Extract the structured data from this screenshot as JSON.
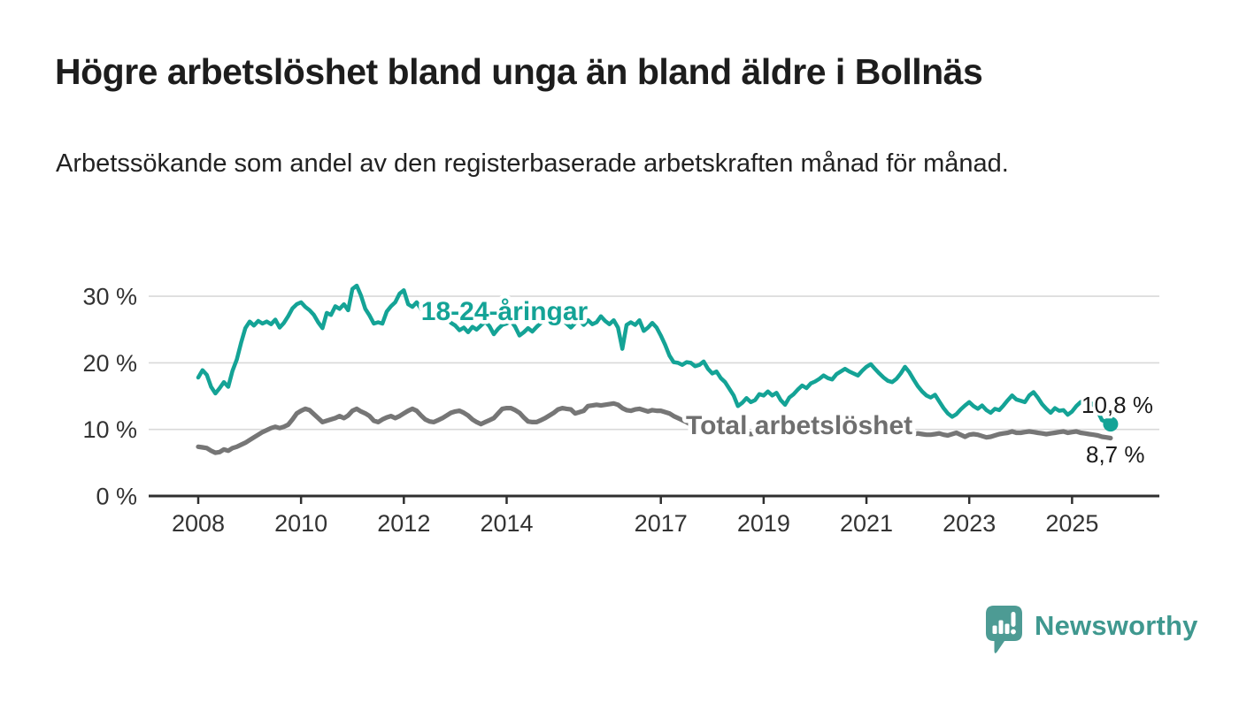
{
  "header": {
    "title": "Högre arbetslöshet bland unga än bland äldre i Bollnäs",
    "subtitle": "Arbetssökande som andel av den registerbaserade arbetskraften månad för månad."
  },
  "chart_data": {
    "type": "line",
    "unit": "%",
    "x_start": "2008-01",
    "x_end": "2025-10",
    "frequency": "monthly",
    "ylim": [
      0,
      33
    ],
    "grid": "horizontal",
    "y_ticks": [
      {
        "value": 0,
        "label": "0 %"
      },
      {
        "value": 10,
        "label": "10 %"
      },
      {
        "value": 20,
        "label": "20 %"
      },
      {
        "value": 30,
        "label": "30 %"
      }
    ],
    "x_ticks": [
      {
        "year": 2008,
        "label": "2008"
      },
      {
        "year": 2010,
        "label": "2010"
      },
      {
        "year": 2012,
        "label": "2012"
      },
      {
        "year": 2014,
        "label": "2014"
      },
      {
        "year": 2017,
        "label": "2017"
      },
      {
        "year": 2019,
        "label": "2019"
      },
      {
        "year": 2021,
        "label": "2021"
      },
      {
        "year": 2023,
        "label": "2023"
      },
      {
        "year": 2025,
        "label": "2025"
      }
    ],
    "series": [
      {
        "name": "18-24-åringar",
        "color": "#14a396",
        "end_label": "10,8 %",
        "end_value": 10.8,
        "end_marker": true,
        "values": [
          17.8,
          18.9,
          18.2,
          16.4,
          15.4,
          16.2,
          17.1,
          16.4,
          18.8,
          20.5,
          23.0,
          25.2,
          26.2,
          25.6,
          26.3,
          25.9,
          26.2,
          25.8,
          26.5,
          25.3,
          26.0,
          27.0,
          28.2,
          28.8,
          29.1,
          28.4,
          27.9,
          27.2,
          26.1,
          25.2,
          27.5,
          27.2,
          28.5,
          28.1,
          28.8,
          27.9,
          31.1,
          31.6,
          30.1,
          28.1,
          27.1,
          25.9,
          26.1,
          25.9,
          27.7,
          28.5,
          29.1,
          30.4,
          30.9,
          28.8,
          28.4,
          29.1,
          28.1,
          28.5,
          27.5,
          27.9,
          27.0,
          26.2,
          26.8,
          26.0,
          25.6,
          24.9,
          25.3,
          24.6,
          25.4,
          25.0,
          25.6,
          26.2,
          25.5,
          24.3,
          25.1,
          25.7,
          25.9,
          26.3,
          25.4,
          24.1,
          24.6,
          25.2,
          24.7,
          25.4,
          26.0,
          26.5,
          27.0,
          26.6,
          27.2,
          26.5,
          25.9,
          25.3,
          26.0,
          26.4,
          25.7,
          26.4,
          25.8,
          26.1,
          27.0,
          26.3,
          25.8,
          26.4,
          25.3,
          22.1,
          25.7,
          26.1,
          25.7,
          26.4,
          24.8,
          25.3,
          26.0,
          25.3,
          24.1,
          22.7,
          21.1,
          20.1,
          20.0,
          19.7,
          20.1,
          20.0,
          19.5,
          19.7,
          20.2,
          19.1,
          18.4,
          18.7,
          17.7,
          17.1,
          16.1,
          15.1,
          13.5,
          14.0,
          14.7,
          14.1,
          14.4,
          15.3,
          15.1,
          15.7,
          15.1,
          15.5,
          14.4,
          13.7,
          14.8,
          15.3,
          16.0,
          16.6,
          16.2,
          16.9,
          17.2,
          17.6,
          18.1,
          17.7,
          17.5,
          18.3,
          18.7,
          19.1,
          18.7,
          18.4,
          18.1,
          18.8,
          19.4,
          19.8,
          19.1,
          18.4,
          17.8,
          17.3,
          17.1,
          17.6,
          18.4,
          19.4,
          18.6,
          17.5,
          16.5,
          15.7,
          15.1,
          14.8,
          15.2,
          14.2,
          13.2,
          12.4,
          11.9,
          12.3,
          13.0,
          13.6,
          14.1,
          13.5,
          13.1,
          13.6,
          12.9,
          12.5,
          13.1,
          12.9,
          13.6,
          14.4,
          15.1,
          14.5,
          14.3,
          14.1,
          15.1,
          15.6,
          14.8,
          13.8,
          13.1,
          12.5,
          13.2,
          12.8,
          12.9,
          12.2,
          12.7,
          13.5,
          14.1,
          14.3,
          14.1,
          13.7,
          12.7,
          11.4,
          11.1,
          10.8
        ]
      },
      {
        "name": "Total arbetslöshet",
        "color": "#767676",
        "end_label": "8,7 %",
        "end_value": 8.7,
        "end_marker": false,
        "values": [
          7.4,
          7.3,
          7.2,
          6.8,
          6.5,
          6.6,
          7.0,
          6.8,
          7.2,
          7.4,
          7.7,
          8.0,
          8.4,
          8.8,
          9.2,
          9.6,
          9.9,
          10.2,
          10.4,
          10.2,
          10.4,
          10.7,
          11.5,
          12.4,
          12.8,
          13.1,
          12.9,
          12.3,
          11.7,
          11.1,
          11.3,
          11.5,
          11.7,
          12.0,
          11.7,
          12.1,
          12.8,
          13.1,
          12.7,
          12.4,
          12.0,
          11.3,
          11.1,
          11.5,
          11.8,
          12.0,
          11.7,
          12.0,
          12.4,
          12.8,
          13.1,
          12.8,
          12.1,
          11.5,
          11.2,
          11.1,
          11.4,
          11.7,
          12.1,
          12.5,
          12.7,
          12.8,
          12.5,
          12.1,
          11.5,
          11.1,
          10.8,
          11.1,
          11.4,
          11.7,
          12.4,
          13.1,
          13.2,
          13.2,
          12.9,
          12.5,
          11.8,
          11.2,
          11.1,
          11.1,
          11.4,
          11.7,
          12.1,
          12.5,
          13.0,
          13.2,
          13.1,
          13.0,
          12.4,
          12.6,
          12.8,
          13.5,
          13.6,
          13.7,
          13.6,
          13.7,
          13.8,
          13.9,
          13.7,
          13.2,
          12.9,
          12.8,
          13.0,
          13.1,
          12.9,
          12.7,
          12.9,
          12.8,
          12.8,
          12.6,
          12.4,
          12.0,
          11.7,
          11.4,
          11.1,
          10.7,
          10.4,
          10.3,
          10.2,
          10.1,
          10.0,
          9.9,
          9.8,
          9.6,
          9.4,
          9.3,
          9.2,
          9.3,
          9.4,
          9.3,
          9.4,
          9.5,
          9.5,
          9.6,
          9.5,
          9.4,
          9.3,
          9.2,
          9.4,
          9.6,
          9.8,
          9.9,
          9.8,
          10.0,
          10.1,
          10.2,
          10.5,
          10.8,
          10.9,
          11.0,
          11.1,
          11.0,
          10.8,
          10.6,
          10.4,
          10.5,
          10.6,
          10.5,
          10.4,
          10.2,
          10.0,
          9.8,
          9.7,
          9.6,
          9.5,
          9.4,
          9.3,
          9.3,
          9.4,
          9.3,
          9.2,
          9.2,
          9.3,
          9.4,
          9.2,
          9.1,
          9.3,
          9.5,
          9.2,
          8.9,
          9.2,
          9.3,
          9.2,
          9.0,
          8.8,
          8.9,
          9.1,
          9.3,
          9.4,
          9.5,
          9.7,
          9.5,
          9.5,
          9.6,
          9.7,
          9.6,
          9.5,
          9.4,
          9.3,
          9.4,
          9.5,
          9.6,
          9.7,
          9.5,
          9.6,
          9.7,
          9.5,
          9.4,
          9.3,
          9.2,
          9.1,
          8.9,
          8.8,
          8.7
        ]
      }
    ]
  },
  "branding": {
    "logo_text": "Newsworthy",
    "logo_color": "#4d9b94",
    "logo_icon": "bar-chart-speech-bubble-icon"
  }
}
